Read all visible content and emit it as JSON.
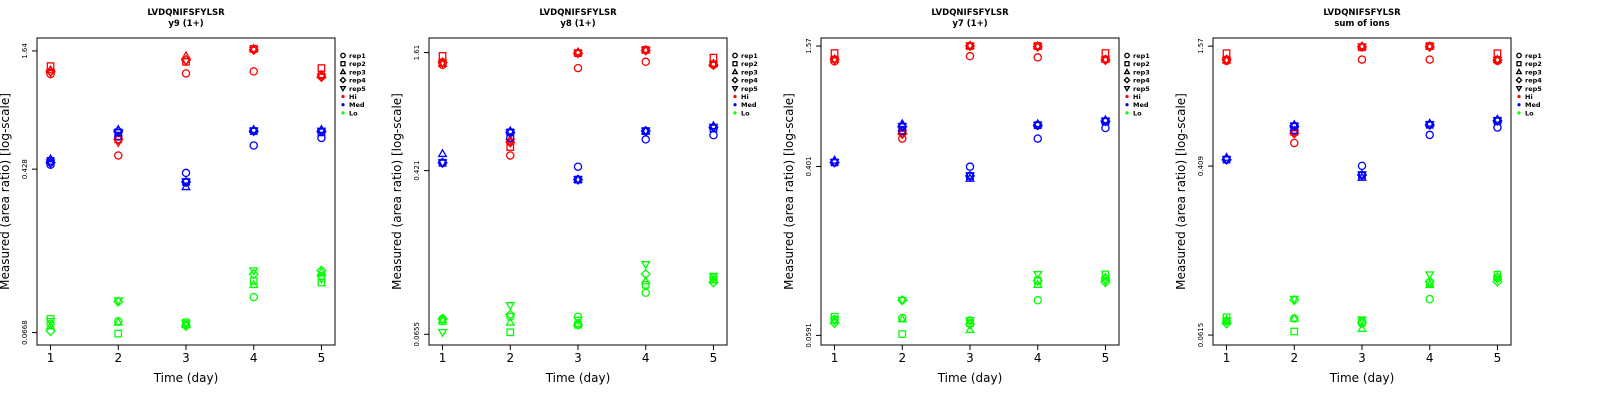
{
  "colors": {
    "Hi": "#ff0000",
    "Med": "#0000ff",
    "Lo": "#00ff00"
  },
  "legend_entries": [
    "rep1",
    "rep2",
    "rep3",
    "rep4",
    "rep5",
    "Hi",
    "Med",
    "Lo"
  ],
  "chart_data": [
    {
      "type": "scatter",
      "title": "LVDQNIFSFYLSR",
      "subtitle": "y9 (1+)",
      "xlabel": "Time (day)",
      "ylabel": "Measured (area ratio) [log-scale]",
      "xlim": [
        0.8,
        5.2
      ],
      "ylim": [
        0.058,
        1.9
      ],
      "yscale": "log",
      "x_ticks": [
        "1",
        "2",
        "3",
        "4",
        "5"
      ],
      "y_ticks": [
        {
          "value": 0.0668,
          "label": "0.0668"
        },
        {
          "value": 0.428,
          "label": "0.428"
        },
        {
          "value": 1.64,
          "label": "1.64"
        }
      ],
      "series": [
        {
          "level": "Hi",
          "x": [
            1,
            1,
            1,
            1,
            1,
            2,
            2,
            2,
            2,
            2,
            3,
            3,
            3,
            3,
            3,
            4,
            4,
            4,
            4,
            4,
            5,
            5,
            5,
            5,
            5
          ],
          "y": [
            1.26,
            1.38,
            1.32,
            1.3,
            1.28,
            0.5,
            0.6,
            0.62,
            0.6,
            0.58,
            1.27,
            1.45,
            1.55,
            1.48,
            1.46,
            1.3,
            1.68,
            1.68,
            1.66,
            1.66,
            1.25,
            1.35,
            1.25,
            1.22,
            1.22
          ],
          "marker": [
            0,
            1,
            2,
            3,
            4,
            0,
            1,
            2,
            3,
            4,
            0,
            1,
            2,
            3,
            4,
            0,
            1,
            2,
            3,
            4,
            0,
            1,
            2,
            3,
            4
          ]
        },
        {
          "level": "Med",
          "x": [
            1,
            1,
            1,
            1,
            1,
            2,
            2,
            2,
            2,
            2,
            3,
            3,
            3,
            3,
            3,
            4,
            4,
            4,
            4,
            4,
            5,
            5,
            5,
            5,
            5
          ],
          "y": [
            0.45,
            0.47,
            0.48,
            0.46,
            0.46,
            0.62,
            0.65,
            0.67,
            0.66,
            0.65,
            0.41,
            0.37,
            0.35,
            0.37,
            0.37,
            0.56,
            0.66,
            0.67,
            0.66,
            0.66,
            0.61,
            0.65,
            0.67,
            0.66,
            0.66
          ],
          "marker": [
            0,
            1,
            2,
            3,
            4,
            0,
            1,
            2,
            3,
            4,
            0,
            1,
            2,
            3,
            4,
            0,
            1,
            2,
            3,
            4,
            0,
            1,
            2,
            3,
            4
          ]
        },
        {
          "level": "Lo",
          "x": [
            1,
            1,
            1,
            1,
            1,
            2,
            2,
            2,
            2,
            2,
            3,
            3,
            3,
            3,
            3,
            4,
            4,
            4,
            4,
            4,
            5,
            5,
            5,
            5,
            5
          ],
          "y": [
            0.074,
            0.078,
            0.072,
            0.068,
            0.076,
            0.076,
            0.066,
            0.075,
            0.095,
            0.096,
            0.073,
            0.075,
            0.073,
            0.072,
            0.074,
            0.1,
            0.12,
            0.115,
            0.13,
            0.135,
            0.127,
            0.118,
            0.133,
            0.135,
            0.123
          ],
          "marker": [
            0,
            1,
            2,
            3,
            4,
            0,
            1,
            2,
            3,
            4,
            0,
            1,
            2,
            3,
            4,
            0,
            1,
            2,
            3,
            4,
            0,
            1,
            2,
            3,
            4
          ]
        }
      ]
    },
    {
      "type": "scatter",
      "title": "LVDQNIFSFYLSR",
      "subtitle": "y8 (1+)",
      "xlabel": "Time (day)",
      "ylabel": "Measured (area ratio) [log-scale]",
      "xlim": [
        0.8,
        5.2
      ],
      "ylim": [
        0.058,
        1.9
      ],
      "yscale": "log",
      "x_ticks": [
        "1",
        "2",
        "3",
        "4",
        "5"
      ],
      "y_ticks": [
        {
          "value": 0.0655,
          "label": "0.0655"
        },
        {
          "value": 0.421,
          "label": "0.421"
        },
        {
          "value": 1.61,
          "label": "1.61"
        }
      ],
      "series": [
        {
          "level": "Hi",
          "x": [
            1,
            1,
            1,
            1,
            1,
            2,
            2,
            2,
            2,
            2,
            3,
            3,
            3,
            3,
            3,
            4,
            4,
            4,
            4,
            4,
            5,
            5,
            5,
            5,
            5
          ],
          "y": [
            1.4,
            1.55,
            1.42,
            1.44,
            1.43,
            0.5,
            0.55,
            0.6,
            0.58,
            0.58,
            1.35,
            1.6,
            1.62,
            1.6,
            1.6,
            1.45,
            1.66,
            1.66,
            1.65,
            1.65,
            1.4,
            1.52,
            1.42,
            1.4,
            1.4
          ],
          "marker": [
            0,
            1,
            2,
            3,
            4,
            0,
            1,
            2,
            3,
            4,
            0,
            1,
            2,
            3,
            4,
            0,
            1,
            2,
            3,
            4,
            0,
            1,
            2,
            3,
            4
          ]
        },
        {
          "level": "Med",
          "x": [
            1,
            1,
            1,
            1,
            1,
            2,
            2,
            2,
            2,
            2,
            3,
            3,
            3,
            3,
            3,
            4,
            4,
            4,
            4,
            4,
            5,
            5,
            5,
            5,
            5
          ],
          "y": [
            0.46,
            0.46,
            0.51,
            0.46,
            0.46,
            0.61,
            0.65,
            0.66,
            0.65,
            0.65,
            0.44,
            0.38,
            0.38,
            0.38,
            0.38,
            0.6,
            0.66,
            0.66,
            0.66,
            0.66,
            0.63,
            0.68,
            0.7,
            0.69,
            0.69
          ],
          "marker": [
            0,
            1,
            2,
            3,
            4,
            0,
            1,
            2,
            3,
            4,
            0,
            1,
            2,
            3,
            4,
            0,
            1,
            2,
            3,
            4,
            0,
            1,
            2,
            3,
            4
          ]
        },
        {
          "level": "Lo",
          "x": [
            1,
            1,
            1,
            1,
            1,
            2,
            2,
            2,
            2,
            2,
            3,
            3,
            3,
            3,
            3,
            4,
            4,
            4,
            4,
            4,
            5,
            5,
            5,
            5,
            5
          ],
          "y": [
            0.078,
            0.076,
            0.077,
            0.078,
            0.067,
            0.08,
            0.067,
            0.075,
            0.082,
            0.091,
            0.08,
            0.073,
            0.074,
            0.073,
            0.077,
            0.105,
            0.115,
            0.12,
            0.13,
            0.145,
            0.125,
            0.122,
            0.122,
            0.118,
            0.127
          ],
          "marker": [
            0,
            1,
            2,
            3,
            4,
            0,
            1,
            2,
            3,
            4,
            0,
            1,
            2,
            3,
            4,
            0,
            1,
            2,
            3,
            4,
            0,
            1,
            2,
            3,
            4
          ]
        }
      ]
    },
    {
      "type": "scatter",
      "title": "LVDQNIFSFYLSR",
      "subtitle": "y7 (1+)",
      "xlabel": "Time (day)",
      "ylabel": "Measured (area ratio) [log-scale]",
      "xlim": [
        0.8,
        5.2
      ],
      "ylim": [
        0.053,
        1.72
      ],
      "yscale": "log",
      "x_ticks": [
        "1",
        "2",
        "3",
        "4",
        "5"
      ],
      "y_ticks": [
        {
          "value": 0.0591,
          "label": "0.0591"
        },
        {
          "value": 0.401,
          "label": "0.401"
        },
        {
          "value": 1.57,
          "label": "1.57"
        }
      ],
      "series": [
        {
          "level": "Hi",
          "x": [
            1,
            1,
            1,
            1,
            1,
            2,
            2,
            2,
            2,
            2,
            3,
            3,
            3,
            3,
            3,
            4,
            4,
            4,
            4,
            4,
            5,
            5,
            5,
            5,
            5
          ],
          "y": [
            1.32,
            1.45,
            1.35,
            1.35,
            1.34,
            0.55,
            0.6,
            0.6,
            0.58,
            0.58,
            1.4,
            1.57,
            1.58,
            1.57,
            1.57,
            1.38,
            1.57,
            1.57,
            1.56,
            1.56,
            1.35,
            1.45,
            1.35,
            1.34,
            1.34
          ],
          "marker": [
            0,
            1,
            2,
            3,
            4,
            0,
            1,
            2,
            3,
            4,
            0,
            1,
            2,
            3,
            4,
            0,
            1,
            2,
            3,
            4,
            0,
            1,
            2,
            3,
            4
          ]
        },
        {
          "level": "Med",
          "x": [
            1,
            1,
            1,
            1,
            1,
            2,
            2,
            2,
            2,
            2,
            3,
            3,
            3,
            3,
            3,
            4,
            4,
            4,
            4,
            4,
            5,
            5,
            5,
            5,
            5
          ],
          "y": [
            0.42,
            0.42,
            0.43,
            0.42,
            0.42,
            0.6,
            0.63,
            0.65,
            0.63,
            0.63,
            0.4,
            0.36,
            0.35,
            0.36,
            0.36,
            0.55,
            0.64,
            0.65,
            0.64,
            0.64,
            0.62,
            0.67,
            0.68,
            0.67,
            0.67
          ],
          "marker": [
            0,
            1,
            2,
            3,
            4,
            0,
            1,
            2,
            3,
            4,
            0,
            1,
            2,
            3,
            4,
            0,
            1,
            2,
            3,
            4,
            0,
            1,
            2,
            3,
            4
          ]
        },
        {
          "level": "Lo",
          "x": [
            1,
            1,
            1,
            1,
            1,
            2,
            2,
            2,
            2,
            2,
            3,
            3,
            3,
            3,
            3,
            4,
            4,
            4,
            4,
            4,
            5,
            5,
            5,
            5,
            5
          ],
          "y": [
            0.071,
            0.073,
            0.07,
            0.068,
            0.07,
            0.072,
            0.06,
            0.071,
            0.088,
            0.088,
            0.07,
            0.068,
            0.063,
            0.067,
            0.07,
            0.088,
            0.11,
            0.105,
            0.11,
            0.118,
            0.112,
            0.118,
            0.114,
            0.108,
            0.11
          ],
          "marker": [
            0,
            1,
            2,
            3,
            4,
            0,
            1,
            2,
            3,
            4,
            0,
            1,
            2,
            3,
            4,
            0,
            1,
            2,
            3,
            4,
            0,
            1,
            2,
            3,
            4
          ]
        }
      ]
    },
    {
      "type": "scatter",
      "title": "LVDQNIFSFYLSR",
      "subtitle": "sum of ions",
      "xlabel": "Time (day)",
      "ylabel": "Measured (area ratio) [log-scale]",
      "xlim": [
        0.8,
        5.2
      ],
      "ylim": [
        0.055,
        1.72
      ],
      "yscale": "log",
      "x_ticks": [
        "1",
        "2",
        "3",
        "4",
        "5"
      ],
      "y_ticks": [
        {
          "value": 0.0615,
          "label": "0.0615"
        },
        {
          "value": 0.409,
          "label": "0.409"
        },
        {
          "value": 1.57,
          "label": "1.57"
        }
      ],
      "series": [
        {
          "level": "Hi",
          "x": [
            1,
            1,
            1,
            1,
            1,
            2,
            2,
            2,
            2,
            2,
            3,
            3,
            3,
            3,
            3,
            4,
            4,
            4,
            4,
            4,
            5,
            5,
            5,
            5,
            5
          ],
          "y": [
            1.33,
            1.45,
            1.34,
            1.35,
            1.34,
            0.53,
            0.6,
            0.61,
            0.59,
            0.59,
            1.35,
            1.55,
            1.57,
            1.56,
            1.56,
            1.35,
            1.57,
            1.57,
            1.56,
            1.56,
            1.33,
            1.45,
            1.35,
            1.34,
            1.34
          ],
          "marker": [
            0,
            1,
            2,
            3,
            4,
            0,
            1,
            2,
            3,
            4,
            0,
            1,
            2,
            3,
            4,
            0,
            1,
            2,
            3,
            4,
            0,
            1,
            2,
            3,
            4
          ]
        },
        {
          "level": "Med",
          "x": [
            1,
            1,
            1,
            1,
            1,
            2,
            2,
            2,
            2,
            2,
            3,
            3,
            3,
            3,
            3,
            4,
            4,
            4,
            4,
            4,
            5,
            5,
            5,
            5,
            5
          ],
          "y": [
            0.44,
            0.44,
            0.45,
            0.44,
            0.44,
            0.61,
            0.64,
            0.65,
            0.64,
            0.64,
            0.41,
            0.37,
            0.36,
            0.37,
            0.37,
            0.58,
            0.65,
            0.66,
            0.65,
            0.65,
            0.63,
            0.68,
            0.69,
            0.68,
            0.68
          ],
          "marker": [
            0,
            1,
            2,
            3,
            4,
            0,
            1,
            2,
            3,
            4,
            0,
            1,
            2,
            3,
            4,
            0,
            1,
            2,
            3,
            4,
            0,
            1,
            2,
            3,
            4
          ]
        },
        {
          "level": "Lo",
          "x": [
            1,
            1,
            1,
            1,
            1,
            2,
            2,
            2,
            2,
            2,
            3,
            3,
            3,
            3,
            3,
            4,
            4,
            4,
            4,
            4,
            5,
            5,
            5,
            5,
            5
          ],
          "y": [
            0.072,
            0.075,
            0.073,
            0.07,
            0.072,
            0.074,
            0.064,
            0.074,
            0.091,
            0.092,
            0.07,
            0.072,
            0.066,
            0.071,
            0.073,
            0.092,
            0.11,
            0.108,
            0.112,
            0.121,
            0.117,
            0.121,
            0.118,
            0.112,
            0.115
          ],
          "marker": [
            0,
            1,
            2,
            3,
            4,
            0,
            1,
            2,
            3,
            4,
            0,
            1,
            2,
            3,
            4,
            0,
            1,
            2,
            3,
            4,
            0,
            1,
            2,
            3,
            4
          ]
        }
      ]
    }
  ]
}
